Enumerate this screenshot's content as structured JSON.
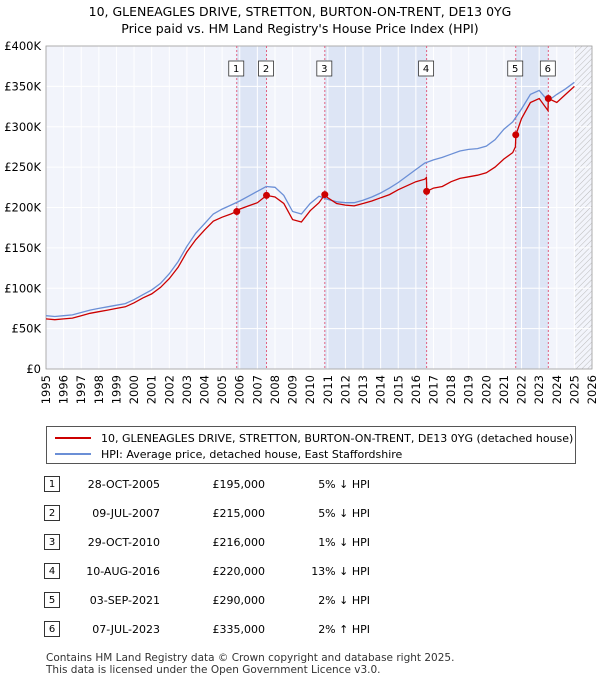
{
  "title": "10, GLENEAGLES DRIVE, STRETTON, BURTON-ON-TRENT, DE13 0YG",
  "subtitle": "Price paid vs. HM Land Registry's House Price Index (HPI)",
  "colors": {
    "property": "#cc0000",
    "hpi": "#6b8fd6",
    "shade": "#dde5f5",
    "marker_line": "#e06080"
  },
  "chart_data": {
    "type": "line",
    "title": "10, GLENEAGLES DRIVE, STRETTON, BURTON-ON-TRENT, DE13 0YG",
    "subtitle": "Price paid vs. HM Land Registry's House Price Index (HPI)",
    "xlim": [
      1995,
      2026
    ],
    "ylim": [
      0,
      400000
    ],
    "y_ticks": [
      0,
      50000,
      100000,
      150000,
      200000,
      250000,
      300000,
      350000,
      400000
    ],
    "y_tick_labels": [
      "£0",
      "£50K",
      "£100K",
      "£150K",
      "£200K",
      "£250K",
      "£300K",
      "£350K",
      "£400K"
    ],
    "x_ticks": [
      "1995",
      "1996",
      "1997",
      "1998",
      "1999",
      "2000",
      "2001",
      "2002",
      "2003",
      "2004",
      "2005",
      "2006",
      "2007",
      "2008",
      "2009",
      "2010",
      "2011",
      "2012",
      "2013",
      "2014",
      "2015",
      "2016",
      "2017",
      "2018",
      "2019",
      "2020",
      "2021",
      "2022",
      "2023",
      "2024",
      "2025",
      "2026"
    ],
    "grid": true,
    "series": [
      {
        "name": "10, GLENEAGLES DRIVE, STRETTON, BURTON-ON-TRENT, DE13 0YG (detached house)",
        "color": "#cc0000",
        "x": [
          1995.0,
          1995.5,
          1996.0,
          1996.5,
          1997.0,
          1997.5,
          1998.0,
          1998.5,
          1999.0,
          1999.5,
          2000.0,
          2000.5,
          2001.0,
          2001.5,
          2002.0,
          2002.5,
          2003.0,
          2003.5,
          2004.0,
          2004.5,
          2005.0,
          2005.5,
          2005.83,
          2006.0,
          2006.5,
          2007.0,
          2007.52,
          2008.0,
          2008.5,
          2009.0,
          2009.5,
          2010.0,
          2010.5,
          2010.83,
          2011.0,
          2011.5,
          2012.0,
          2012.5,
          2013.0,
          2013.5,
          2014.0,
          2014.5,
          2015.0,
          2015.5,
          2016.0,
          2016.5,
          2016.6,
          2016.62,
          2017.0,
          2017.5,
          2018.0,
          2018.5,
          2019.0,
          2019.5,
          2020.0,
          2020.5,
          2021.0,
          2021.5,
          2021.65,
          2021.68,
          2022.0,
          2022.5,
          2023.0,
          2023.5,
          2023.52,
          2024.0,
          2024.5,
          2025.0
        ],
        "y": [
          62000,
          61000,
          62000,
          63000,
          66000,
          69000,
          71000,
          73000,
          75000,
          77000,
          82000,
          88000,
          93000,
          101000,
          112000,
          126000,
          145000,
          160000,
          172000,
          183000,
          188000,
          192000,
          195000,
          198000,
          202000,
          206000,
          215000,
          213000,
          205000,
          185000,
          182000,
          196000,
          206000,
          216000,
          212000,
          205000,
          203000,
          202000,
          205000,
          208000,
          212000,
          216000,
          222000,
          227000,
          232000,
          235000,
          237000,
          220000,
          224000,
          226000,
          232000,
          236000,
          238000,
          240000,
          243000,
          250000,
          260000,
          268000,
          275000,
          290000,
          310000,
          330000,
          335000,
          320000,
          335000,
          330000,
          340000,
          350000
        ]
      },
      {
        "name": "HPI: Average price, detached house, East Staffordshire",
        "color": "#6b8fd6",
        "x": [
          1995.0,
          1995.5,
          1996.0,
          1996.5,
          1997.0,
          1997.5,
          1998.0,
          1998.5,
          1999.0,
          1999.5,
          2000.0,
          2000.5,
          2001.0,
          2001.5,
          2002.0,
          2002.5,
          2003.0,
          2003.5,
          2004.0,
          2004.5,
          2005.0,
          2005.5,
          2006.0,
          2006.5,
          2007.0,
          2007.5,
          2008.0,
          2008.5,
          2009.0,
          2009.5,
          2010.0,
          2010.5,
          2011.0,
          2011.5,
          2012.0,
          2012.5,
          2013.0,
          2013.5,
          2014.0,
          2014.5,
          2015.0,
          2015.5,
          2016.0,
          2016.5,
          2017.0,
          2017.5,
          2018.0,
          2018.5,
          2019.0,
          2019.5,
          2020.0,
          2020.5,
          2021.0,
          2021.5,
          2022.0,
          2022.5,
          2023.0,
          2023.5,
          2024.0,
          2024.5,
          2025.0
        ],
        "y": [
          66000,
          65000,
          66000,
          67000,
          70000,
          73000,
          75000,
          77000,
          79000,
          81000,
          86000,
          92000,
          98000,
          106000,
          118000,
          133000,
          152000,
          168000,
          180000,
          192000,
          198000,
          203000,
          208000,
          214000,
          220000,
          226000,
          225000,
          215000,
          195000,
          192000,
          205000,
          214000,
          210000,
          207000,
          206000,
          206000,
          209000,
          213000,
          218000,
          224000,
          231000,
          239000,
          247000,
          255000,
          259000,
          262000,
          266000,
          270000,
          272000,
          273000,
          276000,
          284000,
          297000,
          306000,
          322000,
          340000,
          345000,
          332000,
          340000,
          347000,
          355000
        ]
      }
    ],
    "sale_markers": [
      {
        "label": "1",
        "x": 2005.83,
        "y": 195000
      },
      {
        "label": "2",
        "x": 2007.52,
        "y": 215000
      },
      {
        "label": "3",
        "x": 2010.83,
        "y": 216000
      },
      {
        "label": "4",
        "x": 2016.61,
        "y": 220000
      },
      {
        "label": "5",
        "x": 2021.67,
        "y": 290000
      },
      {
        "label": "6",
        "x": 2023.52,
        "y": 335000
      }
    ],
    "shaded_spans": [
      [
        2005.83,
        2007.52
      ],
      [
        2010.83,
        2016.61
      ],
      [
        2021.67,
        2023.52
      ]
    ],
    "forecast_from": 2025.0
  },
  "legend": {
    "property_label": "10, GLENEAGLES DRIVE, STRETTON, BURTON-ON-TRENT, DE13 0YG (detached house)",
    "hpi_label": "HPI: Average price, detached house, East Staffordshire"
  },
  "sales": [
    {
      "num": "1",
      "date": "28-OCT-2005",
      "price": "£195,000",
      "hpi": "5% ↓ HPI"
    },
    {
      "num": "2",
      "date": "09-JUL-2007",
      "price": "£215,000",
      "hpi": "5% ↓ HPI"
    },
    {
      "num": "3",
      "date": "29-OCT-2010",
      "price": "£216,000",
      "hpi": "1% ↓ HPI"
    },
    {
      "num": "4",
      "date": "10-AUG-2016",
      "price": "£220,000",
      "hpi": "13% ↓ HPI"
    },
    {
      "num": "5",
      "date": "03-SEP-2021",
      "price": "£290,000",
      "hpi": "2% ↓ HPI"
    },
    {
      "num": "6",
      "date": "07-JUL-2023",
      "price": "£335,000",
      "hpi": "2% ↑ HPI"
    }
  ],
  "footer": {
    "line1": "Contains HM Land Registry data © Crown copyright and database right 2025.",
    "line2": "This data is licensed under the Open Government Licence v3.0."
  }
}
